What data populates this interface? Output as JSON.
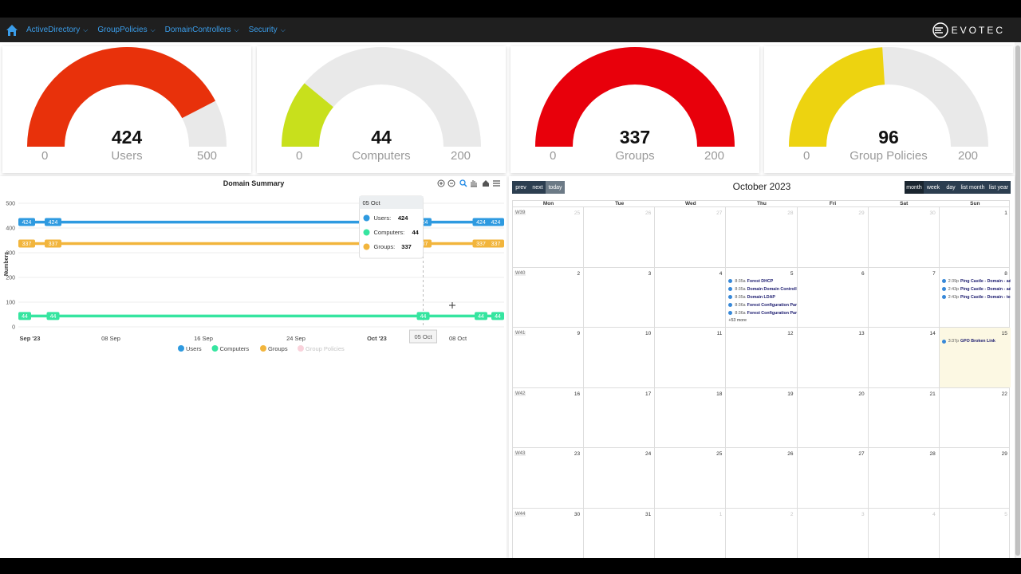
{
  "nav": {
    "items": [
      {
        "label": "ActiveDirectory"
      },
      {
        "label": "GroupPolicies"
      },
      {
        "label": "DomainControllers"
      },
      {
        "label": "Security"
      }
    ],
    "logo_text": "EVOTEC"
  },
  "gauges": [
    {
      "value": 424,
      "display": "424",
      "label": "Users",
      "min": "0",
      "max": "500",
      "color": "#e8310b"
    },
    {
      "value": 44,
      "display": "44",
      "label": "Computers",
      "min": "0",
      "max": "200",
      "color": "#c8e01c"
    },
    {
      "value": 337,
      "display": "337",
      "label": "Groups",
      "min": "0",
      "max": "200",
      "color": "#e8000b"
    },
    {
      "value": 96,
      "display": "96",
      "label": "Group Policies",
      "min": "0",
      "max": "200",
      "color": "#edd310"
    }
  ],
  "chart_data": {
    "type": "line",
    "title": "Domain Summary",
    "ylabel": "Numbers",
    "ylim": [
      0,
      500
    ],
    "yticks": [
      "0",
      "100",
      "200",
      "300",
      "400",
      "500"
    ],
    "xrange_days": [
      0,
      42
    ],
    "xticks": [
      {
        "label": "Sep '23",
        "day": 1,
        "bold": true
      },
      {
        "label": "08 Sep",
        "day": 8,
        "bold": false
      },
      {
        "label": "16 Sep",
        "day": 16,
        "bold": false
      },
      {
        "label": "24 Sep",
        "day": 24,
        "bold": false
      },
      {
        "label": "Oct '23",
        "day": 31,
        "bold": true
      },
      {
        "label": "08 Oct",
        "day": 38,
        "bold": false
      }
    ],
    "x_days": [
      0,
      3,
      35,
      40,
      42
    ],
    "series": [
      {
        "name": "Users",
        "values": [
          424,
          424,
          424,
          424,
          424
        ],
        "color": "#2e9ae0",
        "hidden": false
      },
      {
        "name": "Computers",
        "values": [
          44,
          44,
          44,
          44,
          44
        ],
        "color": "#36e5a0",
        "hidden": false
      },
      {
        "name": "Groups",
        "values": [
          337,
          337,
          337,
          337,
          337
        ],
        "color": "#f2b53c",
        "hidden": false
      },
      {
        "name": "Group Policies",
        "values": [],
        "color": "#f4a6b8",
        "hidden": true
      }
    ],
    "tooltip": {
      "title": "05 Oct",
      "day": 35,
      "rows": [
        {
          "name": "Users",
          "value": "424",
          "color": "#2e9ae0"
        },
        {
          "name": "Computers",
          "value": "44",
          "color": "#36e5a0"
        },
        {
          "name": "Groups",
          "value": "337",
          "color": "#f2b53c"
        }
      ]
    },
    "crosshair_label": "05 Oct"
  },
  "calendar": {
    "buttons": {
      "prev": "prev",
      "next": "next",
      "today": "today"
    },
    "views": [
      "month",
      "week",
      "day",
      "list month",
      "list year"
    ],
    "title": "October 2023",
    "dow": [
      "Mon",
      "Tue",
      "Wed",
      "Thu",
      "Fri",
      "Sat",
      "Sun"
    ],
    "weeks": [
      {
        "wk": "W39",
        "days": [
          {
            "n": "25",
            "o": true
          },
          {
            "n": "26",
            "o": true
          },
          {
            "n": "27",
            "o": true
          },
          {
            "n": "28",
            "o": true
          },
          {
            "n": "29",
            "o": true
          },
          {
            "n": "30",
            "o": true
          },
          {
            "n": "1",
            "o": false
          }
        ]
      },
      {
        "wk": "W40",
        "days": [
          {
            "n": "2",
            "o": false
          },
          {
            "n": "3",
            "o": false
          },
          {
            "n": "4",
            "o": false
          },
          {
            "n": "5",
            "o": false
          },
          {
            "n": "6",
            "o": false
          },
          {
            "n": "7",
            "o": false
          },
          {
            "n": "8",
            "o": false
          }
        ]
      },
      {
        "wk": "W41",
        "days": [
          {
            "n": "9",
            "o": false
          },
          {
            "n": "10",
            "o": false
          },
          {
            "n": "11",
            "o": false
          },
          {
            "n": "12",
            "o": false
          },
          {
            "n": "13",
            "o": false
          },
          {
            "n": "14",
            "o": false
          },
          {
            "n": "15",
            "o": false,
            "today": true
          }
        ]
      },
      {
        "wk": "W42",
        "days": [
          {
            "n": "16",
            "o": false
          },
          {
            "n": "17",
            "o": false
          },
          {
            "n": "18",
            "o": false
          },
          {
            "n": "19",
            "o": false
          },
          {
            "n": "20",
            "o": false
          },
          {
            "n": "21",
            "o": false
          },
          {
            "n": "22",
            "o": false
          }
        ]
      },
      {
        "wk": "W43",
        "days": [
          {
            "n": "23",
            "o": false
          },
          {
            "n": "24",
            "o": false
          },
          {
            "n": "25",
            "o": false
          },
          {
            "n": "26",
            "o": false
          },
          {
            "n": "27",
            "o": false
          },
          {
            "n": "28",
            "o": false
          },
          {
            "n": "29",
            "o": false
          }
        ]
      },
      {
        "wk": "W44",
        "days": [
          {
            "n": "30",
            "o": false
          },
          {
            "n": "31",
            "o": false
          },
          {
            "n": "1",
            "o": true
          },
          {
            "n": "2",
            "o": true
          },
          {
            "n": "3",
            "o": true
          },
          {
            "n": "4",
            "o": true
          },
          {
            "n": "5",
            "o": true
          }
        ]
      }
    ],
    "events": [
      {
        "week": 1,
        "day": 3,
        "items": [
          {
            "time": "8:35a",
            "title": "Forest DHCP"
          },
          {
            "time": "8:35a",
            "title": "Domain Domain Controllers"
          },
          {
            "time": "8:35a",
            "title": "Domain LDAP"
          },
          {
            "time": "8:36a",
            "title": "Forest Configuration Partitions"
          },
          {
            "time": "8:36a",
            "title": "Forest Configuration Partitions"
          }
        ],
        "more": "+53 more"
      },
      {
        "week": 1,
        "day": 6,
        "items": [
          {
            "time": "2:39p",
            "title": "Ping Castle - Domain - ad.evotec.xyz"
          },
          {
            "time": "2:43p",
            "title": "Ping Castle - Domain - ad.evotec.pl"
          },
          {
            "time": "2:43p",
            "title": "Ping Castle - Domain - test.evotec.pl"
          }
        ],
        "more": ""
      },
      {
        "week": 2,
        "day": 6,
        "items": [
          {
            "time": "3:37p",
            "title": "GPO Broken Link"
          }
        ],
        "more": ""
      }
    ]
  }
}
